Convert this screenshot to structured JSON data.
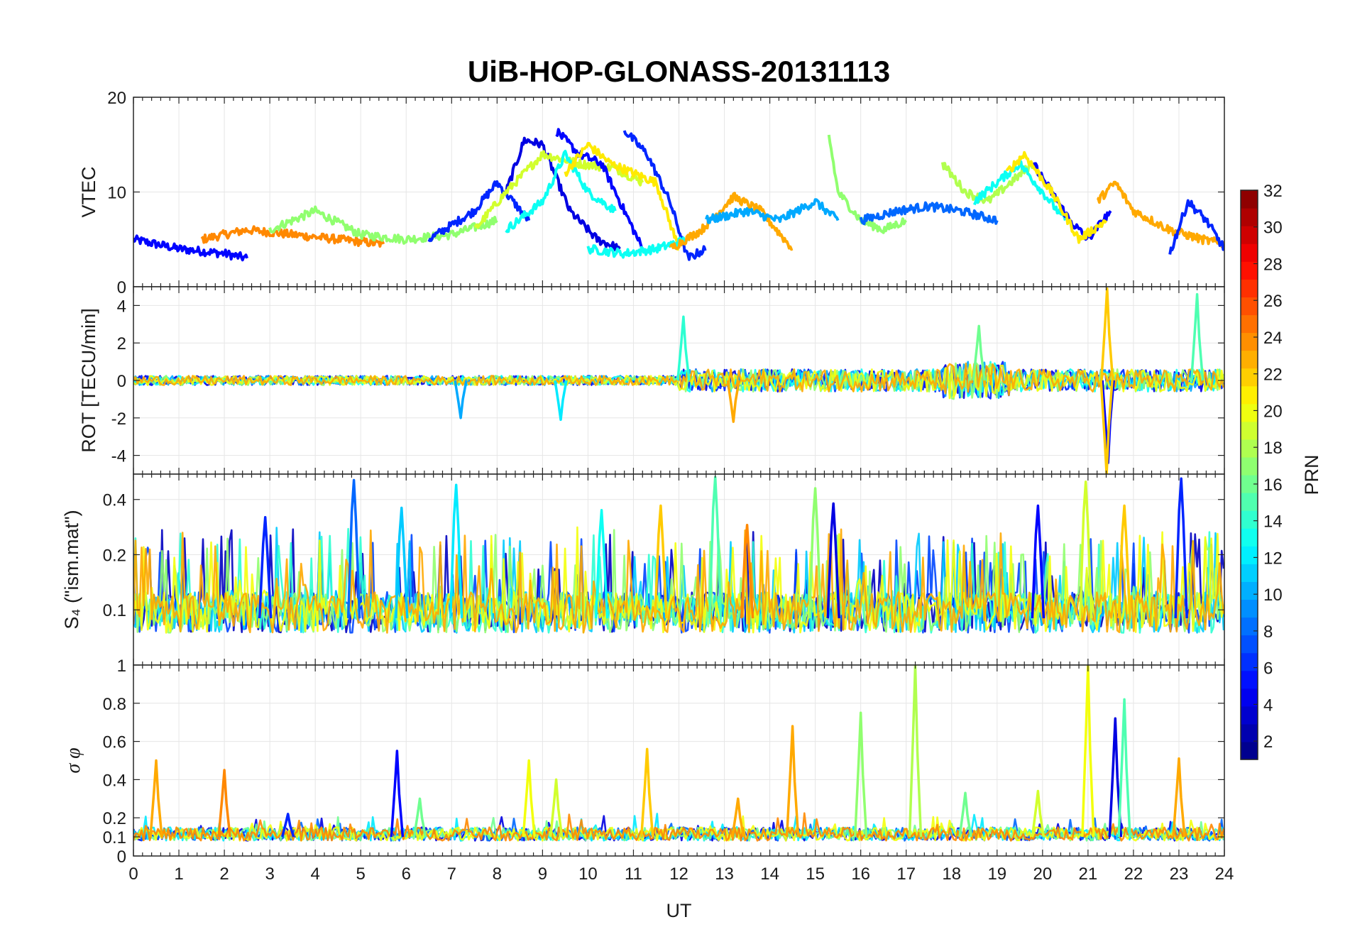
{
  "chart_data": {
    "type": "line",
    "title": "UiB-HOP-GLONASS-20131113",
    "xlabel": "UT",
    "xlim": [
      0,
      24
    ],
    "xticks": [
      "0",
      "1",
      "2",
      "3",
      "4",
      "5",
      "6",
      "7",
      "8",
      "9",
      "10",
      "11",
      "12",
      "13",
      "14",
      "15",
      "16",
      "17",
      "18",
      "19",
      "20",
      "21",
      "22",
      "23",
      "24"
    ],
    "grid": true,
    "panels": [
      {
        "ylabel": "VTEC",
        "ylim": [
          0,
          20
        ],
        "yticks": [
          "0",
          "10",
          "20"
        ],
        "series": [
          {
            "color_value": 5,
            "x": [
              0,
              1,
              2,
              2.5
            ],
            "y": [
              5,
              4,
              3.5,
              3
            ]
          },
          {
            "color_value": 24,
            "x": [
              1.5,
              2.5,
              3.5,
              4.5,
              5.5
            ],
            "y": [
              5,
              6,
              5.5,
              5,
              4.5
            ]
          },
          {
            "color_value": 17,
            "x": [
              3,
              4,
              5,
              6,
              7,
              8
            ],
            "y": [
              6,
              8,
              5.5,
              5,
              5.5,
              7
            ]
          },
          {
            "color_value": 6,
            "x": [
              6.5,
              7.5,
              8,
              8.7
            ],
            "y": [
              5,
              8,
              11,
              7
            ]
          },
          {
            "color_value": 4,
            "x": [
              8.2,
              8.6,
              9,
              9.6,
              10.2,
              10.7
            ],
            "y": [
              10,
              15.5,
              15,
              8,
              5,
              4
            ]
          },
          {
            "color_value": 19,
            "x": [
              7.5,
              8.2,
              9,
              9.8,
              10.6,
              11.2
            ],
            "y": [
              6,
              10,
              14,
              13,
              12.5,
              11
            ]
          },
          {
            "color_value": 13,
            "x": [
              8.2,
              9,
              9.5,
              10,
              10.6
            ],
            "y": [
              6,
              9,
              14,
              10,
              8
            ]
          },
          {
            "color_value": 5,
            "x": [
              9.3,
              9.8,
              10.3,
              10.8,
              11.2
            ],
            "y": [
              16.5,
              14,
              13,
              8,
              4
            ]
          },
          {
            "color_value": 21,
            "x": [
              9.5,
              10,
              10.5,
              11,
              11.5,
              12
            ],
            "y": [
              12,
              15,
              13,
              12,
              11,
              4
            ]
          },
          {
            "color_value": 6,
            "x": [
              10.8,
              11.3,
              11.8,
              12.2,
              12.6
            ],
            "y": [
              16.5,
              14,
              9,
              3,
              4
            ]
          },
          {
            "color_value": 13,
            "x": [
              10,
              10.8,
              11.5,
              12.2
            ],
            "y": [
              4,
              3.5,
              4,
              5
            ]
          },
          {
            "color_value": 23,
            "x": [
              11.8,
              12.5,
              13.2,
              13.8,
              14.5
            ],
            "y": [
              4,
              6,
              9.5,
              8,
              4
            ]
          },
          {
            "color_value": 10,
            "x": [
              12.6,
              13.5,
              14.2,
              15,
              15.5
            ],
            "y": [
              7,
              8,
              7,
              9,
              7
            ]
          },
          {
            "color_value": 17,
            "x": [
              15.3,
              15.5,
              16,
              16.5,
              17
            ],
            "y": [
              16,
              10,
              7,
              6,
              7
            ]
          },
          {
            "color_value": 8,
            "x": [
              16,
              16.8,
              17.5,
              18.2,
              19
            ],
            "y": [
              7,
              8,
              8.5,
              8,
              7
            ]
          },
          {
            "color_value": 18,
            "x": [
              17.8,
              18.3,
              18.8,
              19.3,
              19.8
            ],
            "y": [
              13,
              10,
              9,
              11,
              13
            ]
          },
          {
            "color_value": 13,
            "x": [
              18.5,
              19,
              19.5,
              20,
              20.5
            ],
            "y": [
              9,
              11,
              13,
              10,
              7
            ]
          },
          {
            "color_value": 5,
            "x": [
              19.8,
              20.2,
              20.6,
              21,
              21.5
            ],
            "y": [
              13,
              10,
              7,
              5,
              8
            ]
          },
          {
            "color_value": 21,
            "x": [
              19.2,
              19.6,
              20.2,
              20.8,
              21.4
            ],
            "y": [
              12,
              14,
              10,
              5,
              7
            ]
          },
          {
            "color_value": 23,
            "x": [
              21.2,
              21.6,
              22,
              22.8,
              23.5,
              24
            ],
            "y": [
              9,
              11,
              8,
              6,
              5,
              4.5
            ]
          },
          {
            "color_value": 6,
            "x": [
              22.8,
              23.2,
              23.6,
              24
            ],
            "y": [
              3.5,
              9,
              7,
              4
            ]
          }
        ]
      },
      {
        "ylabel": "ROT [TECU/min]",
        "ylim": [
          -5,
          5
        ],
        "yticks": [
          "-4",
          "-2",
          "0",
          "2",
          "4"
        ],
        "note": "noise around 0; amplitude grows after 12 UT; spikes near 21.4 UT reach +4.9 and -4.4"
      },
      {
        "ylabel": "S₄ (\"ism.mat\")",
        "ylim": [
          0.05,
          0.55
        ],
        "yticks": [
          "0.1",
          "0.2",
          "0.4"
        ],
        "note": "baseline 0.06-0.1 with bursts up to ~0.5 (4.9 UT, 7.1 UT, 12.8 UT, 15 UT, 21 UT, 23 UT)"
      },
      {
        "ylabel": "σ φ",
        "ylim": [
          0,
          1
        ],
        "yticks": [
          "0",
          "0.1",
          "0.2",
          "0.4",
          "0.6",
          "0.8",
          "1"
        ],
        "note": "baseline ~0.1 with peaks: 0.5 (0.5 UT), 0.45 (2 UT), 0.55 (5.8 UT), 0.5 (8.7 UT), 0.55 (11.3 UT), 0.7 (14.5 UT), 0.75 (16 UT), 1.0 (17.2 UT), 1.0 (21 UT), 0.8 (21.8 UT), 0.5 (23 UT)"
      }
    ],
    "colorbar": {
      "label": "PRN",
      "colormap": "jet",
      "range": [
        1,
        32
      ],
      "ticks": [
        "2",
        "4",
        "6",
        "8",
        "10",
        "12",
        "14",
        "16",
        "18",
        "20",
        "22",
        "24",
        "26",
        "28",
        "30",
        "32"
      ]
    }
  }
}
